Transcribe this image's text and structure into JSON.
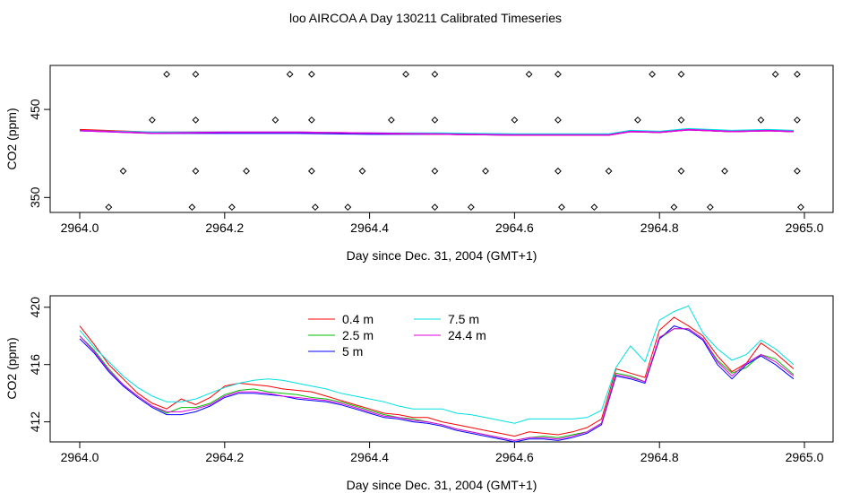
{
  "page_title": "loo AIRCOA A  Day 130211  Calibrated Timeseries",
  "colors": {
    "red": "#ff0000",
    "green": "#00c000",
    "blue": "#0000ff",
    "cyan": "#00e0e0",
    "magenta": "#e000e0",
    "markers": "#000000"
  },
  "chart_data": [
    {
      "type": "line",
      "title": "",
      "xlabel": "Day since Dec. 31, 2004 (GMT+1)",
      "ylabel": "CO2 (ppm)",
      "xlim": [
        2964.0,
        2965.0
      ],
      "ylim": [
        333,
        500
      ],
      "x_ticks": [
        "2964.0",
        "2964.2",
        "2964.4",
        "2964.6",
        "2964.8",
        "2965.0"
      ],
      "y_ticks": [
        "350",
        "450"
      ],
      "y_ticks_values": [
        350,
        450
      ],
      "x_ticks_values": [
        2964.0,
        2964.2,
        2964.4,
        2964.6,
        2964.8,
        2965.0
      ],
      "markers": {
        "symbol": "open-diamond",
        "points": [
          [
            2964.12,
            490
          ],
          [
            2964.16,
            490
          ],
          [
            2964.29,
            490
          ],
          [
            2964.32,
            490
          ],
          [
            2964.45,
            490
          ],
          [
            2964.49,
            490
          ],
          [
            2964.62,
            490
          ],
          [
            2964.66,
            490
          ],
          [
            2964.79,
            490
          ],
          [
            2964.83,
            490
          ],
          [
            2964.96,
            490
          ],
          [
            2964.99,
            490
          ],
          [
            2964.1,
            438
          ],
          [
            2964.16,
            438
          ],
          [
            2964.27,
            438
          ],
          [
            2964.32,
            438
          ],
          [
            2964.43,
            438
          ],
          [
            2964.49,
            438
          ],
          [
            2964.6,
            438
          ],
          [
            2964.66,
            438
          ],
          [
            2964.77,
            438
          ],
          [
            2964.83,
            438
          ],
          [
            2964.94,
            438
          ],
          [
            2964.99,
            438
          ],
          [
            2964.06,
            380
          ],
          [
            2964.16,
            380
          ],
          [
            2964.23,
            380
          ],
          [
            2964.32,
            380
          ],
          [
            2964.39,
            380
          ],
          [
            2964.49,
            380
          ],
          [
            2964.56,
            380
          ],
          [
            2964.66,
            380
          ],
          [
            2964.73,
            380
          ],
          [
            2964.83,
            380
          ],
          [
            2964.89,
            380
          ],
          [
            2964.99,
            380
          ],
          [
            2964.04,
            339
          ],
          [
            2964.155,
            339
          ],
          [
            2964.21,
            339
          ],
          [
            2964.325,
            339
          ],
          [
            2964.37,
            339
          ],
          [
            2964.49,
            339
          ],
          [
            2964.54,
            339
          ],
          [
            2964.665,
            339
          ],
          [
            2964.71,
            339
          ],
          [
            2964.82,
            339
          ],
          [
            2964.87,
            339
          ],
          [
            2964.995,
            339
          ]
        ]
      },
      "series": [
        {
          "color_key": "blue",
          "x": [
            2964.0,
            2964.1,
            2964.2,
            2964.3,
            2964.4,
            2964.5,
            2964.6,
            2964.65,
            2964.7,
            2964.73,
            2964.76,
            2964.8,
            2964.84,
            2964.9,
            2964.95,
            2964.985
          ],
          "values": [
            426,
            423,
            423,
            423,
            422,
            422,
            421,
            421,
            421,
            421,
            425,
            424,
            427,
            425,
            426,
            425
          ]
        },
        {
          "color_key": "red",
          "x": [
            2964.0,
            2964.1,
            2964.2,
            2964.3,
            2964.4,
            2964.5,
            2964.6,
            2964.65,
            2964.7,
            2964.73,
            2964.76,
            2964.8,
            2964.84,
            2964.9,
            2964.95,
            2964.985
          ],
          "values": [
            427,
            424,
            424,
            424,
            423,
            422,
            421,
            421,
            421,
            421,
            425,
            424,
            427,
            425,
            426,
            425
          ]
        },
        {
          "color_key": "cyan",
          "x": [
            2964.0,
            2964.1,
            2964.2,
            2964.3,
            2964.4,
            2964.5,
            2964.6,
            2964.65,
            2964.7,
            2964.73,
            2964.76,
            2964.8,
            2964.84,
            2964.9,
            2964.95,
            2964.985
          ],
          "values": [
            426,
            424,
            424,
            424,
            423,
            423,
            422,
            422,
            422,
            422,
            426,
            425,
            428,
            426,
            427,
            426
          ]
        },
        {
          "color_key": "magenta",
          "x": [
            2964.0,
            2964.1,
            2964.2,
            2964.3,
            2964.4,
            2964.5,
            2964.6,
            2964.65,
            2964.7,
            2964.73,
            2964.76,
            2964.8,
            2964.84,
            2964.9,
            2964.95,
            2964.985
          ],
          "values": [
            426,
            423,
            424,
            424,
            423,
            422,
            421,
            421,
            421,
            421,
            425,
            424,
            427,
            425,
            426,
            425
          ]
        }
      ]
    },
    {
      "type": "line",
      "title": "",
      "xlabel": "Day since Dec. 31, 2004 (GMT+1)",
      "ylabel": "CO2 (ppm)",
      "xlim": [
        2964.0,
        2965.0
      ],
      "ylim": [
        410.6,
        420.8
      ],
      "x_ticks": [
        "2964.0",
        "2964.2",
        "2964.4",
        "2964.6",
        "2964.8",
        "2965.0"
      ],
      "y_ticks": [
        "412",
        "416",
        "420"
      ],
      "y_ticks_values": [
        412,
        416,
        420
      ],
      "x_ticks_values": [
        2964.0,
        2964.2,
        2964.4,
        2964.6,
        2964.8,
        2965.0
      ],
      "legend": {
        "placement": "top-center",
        "columns": 2
      },
      "x": [
        2964.0,
        2964.02,
        2964.04,
        2964.06,
        2964.08,
        2964.1,
        2964.12,
        2964.14,
        2964.16,
        2964.18,
        2964.2,
        2964.22,
        2964.24,
        2964.26,
        2964.28,
        2964.3,
        2964.32,
        2964.34,
        2964.36,
        2964.38,
        2964.4,
        2964.42,
        2964.44,
        2964.46,
        2964.48,
        2964.5,
        2964.52,
        2964.54,
        2964.56,
        2964.58,
        2964.6,
        2964.62,
        2964.64,
        2964.66,
        2964.68,
        2964.7,
        2964.72,
        2964.74,
        2964.76,
        2964.78,
        2964.8,
        2964.82,
        2964.84,
        2964.86,
        2964.88,
        2964.9,
        2964.92,
        2964.94,
        2964.96,
        2964.985
      ],
      "series": [
        {
          "name": "0.4 m",
          "color_key": "red",
          "values": [
            418.7,
            417.4,
            416.0,
            415.0,
            414.0,
            413.3,
            412.9,
            413.6,
            413.2,
            413.7,
            414.5,
            414.7,
            414.6,
            414.5,
            414.3,
            414.2,
            414.1,
            413.8,
            413.5,
            413.2,
            412.9,
            412.6,
            412.5,
            412.3,
            412.3,
            412.0,
            411.8,
            411.6,
            411.4,
            411.2,
            411.0,
            411.3,
            411.2,
            411.1,
            411.3,
            411.6,
            412.2,
            415.7,
            415.4,
            415.1,
            418.4,
            419.3,
            418.7,
            418.0,
            416.6,
            415.5,
            416.1,
            417.5,
            416.8,
            415.7
          ]
        },
        {
          "name": "2.5 m",
          "color_key": "green",
          "values": [
            418.0,
            417.0,
            415.7,
            414.6,
            413.8,
            413.1,
            412.6,
            413.0,
            413.0,
            413.3,
            413.9,
            414.2,
            414.3,
            414.1,
            414.0,
            413.9,
            413.7,
            413.6,
            413.4,
            413.1,
            412.8,
            412.5,
            412.3,
            412.2,
            412.0,
            411.8,
            411.5,
            411.3,
            411.1,
            410.9,
            410.7,
            410.9,
            411.0,
            410.9,
            411.1,
            411.3,
            411.9,
            415.4,
            415.2,
            414.8,
            417.8,
            418.5,
            418.5,
            417.8,
            416.3,
            415.4,
            415.8,
            416.7,
            416.4,
            415.3
          ]
        },
        {
          "name": "5 m",
          "color_key": "blue",
          "values": [
            417.8,
            416.8,
            415.5,
            414.5,
            413.7,
            413.0,
            412.5,
            412.5,
            412.7,
            413.1,
            413.7,
            414.0,
            414.0,
            413.9,
            413.8,
            413.6,
            413.5,
            413.4,
            413.2,
            412.9,
            412.6,
            412.3,
            412.2,
            412.0,
            411.9,
            411.7,
            411.4,
            411.2,
            411.0,
            410.8,
            410.6,
            410.8,
            410.8,
            410.7,
            410.9,
            411.2,
            411.8,
            415.2,
            415.0,
            414.7,
            417.8,
            418.7,
            418.4,
            417.7,
            416.0,
            415.0,
            416.0,
            416.6,
            416.0,
            415.0
          ]
        },
        {
          "name": "7.5 m",
          "color_key": "cyan",
          "values": [
            418.4,
            417.2,
            416.2,
            415.2,
            414.4,
            413.8,
            413.4,
            413.4,
            413.6,
            414.0,
            414.4,
            414.7,
            414.9,
            415.0,
            414.9,
            414.7,
            414.5,
            414.3,
            414.0,
            413.8,
            413.6,
            413.4,
            413.1,
            412.9,
            412.9,
            412.9,
            412.6,
            412.5,
            412.3,
            412.1,
            411.9,
            412.2,
            412.2,
            412.2,
            412.2,
            412.3,
            412.8,
            415.8,
            417.3,
            416.2,
            419.1,
            419.7,
            420.1,
            418.2,
            417.1,
            416.3,
            416.7,
            417.7,
            417.1,
            416.0
          ]
        },
        {
          "name": "24.4 m",
          "color_key": "magenta",
          "values": [
            418.0,
            416.9,
            415.6,
            414.6,
            413.8,
            413.1,
            412.7,
            412.7,
            412.9,
            413.2,
            413.8,
            414.1,
            414.1,
            414.0,
            413.8,
            413.7,
            413.6,
            413.5,
            413.3,
            413.0,
            412.7,
            412.4,
            412.3,
            412.1,
            412.0,
            411.8,
            411.5,
            411.3,
            411.1,
            410.9,
            410.7,
            410.9,
            410.9,
            410.8,
            411.0,
            411.3,
            411.9,
            415.3,
            415.1,
            414.8,
            417.9,
            418.5,
            418.5,
            417.8,
            416.2,
            415.2,
            416.1,
            416.7,
            416.2,
            415.2
          ]
        }
      ]
    }
  ]
}
